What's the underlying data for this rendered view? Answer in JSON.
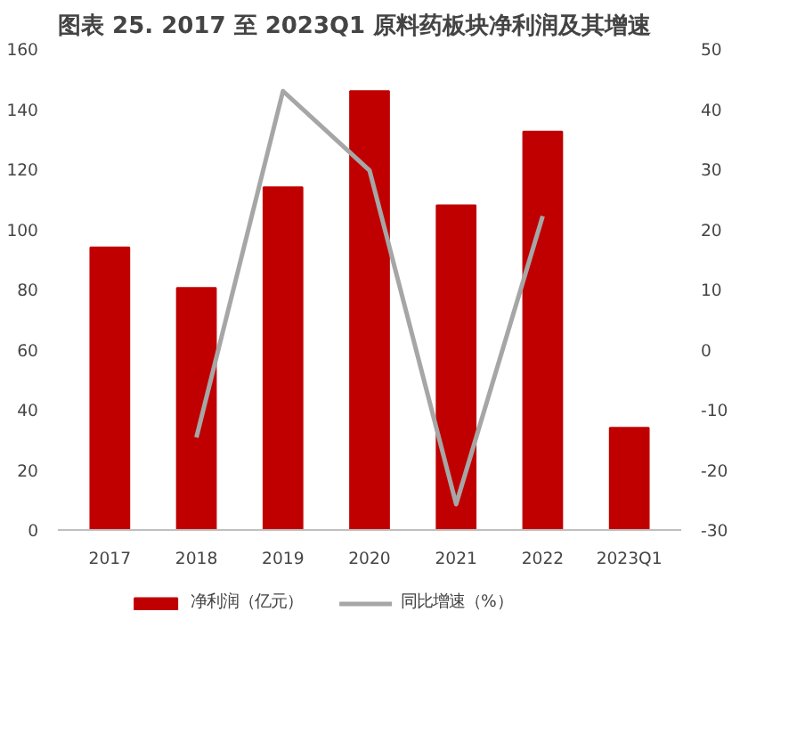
{
  "chart_data": {
    "type": "bar",
    "title": "图表 25. 2017 至 2023Q1 原料药板块净利润及其增速",
    "categories": [
      "2017",
      "2018",
      "2019",
      "2020",
      "2021",
      "2022",
      "2023Q1"
    ],
    "series": [
      {
        "name": "净利润（亿元）",
        "color": "#c00000",
        "values": [
          94,
          80.5,
          114,
          146,
          108,
          132.5,
          34
        ]
      },
      {
        "name": "同比增速（%）",
        "type": "line",
        "axis": "y2",
        "color": "#a6a6a6",
        "values": [
          null,
          -14.6,
          43,
          29.8,
          -25.7,
          22.2,
          null
        ]
      }
    ],
    "ylim": [
      0,
      160
    ],
    "yticks": [
      0,
      20,
      40,
      60,
      80,
      100,
      120,
      140,
      160
    ],
    "y2lim": [
      -30,
      50
    ],
    "y2ticks": [
      -30,
      -20,
      -10,
      0,
      10,
      20,
      30,
      40,
      50
    ],
    "grid": false,
    "legend": "bottom",
    "marker": "none",
    "line_style": "solid"
  }
}
